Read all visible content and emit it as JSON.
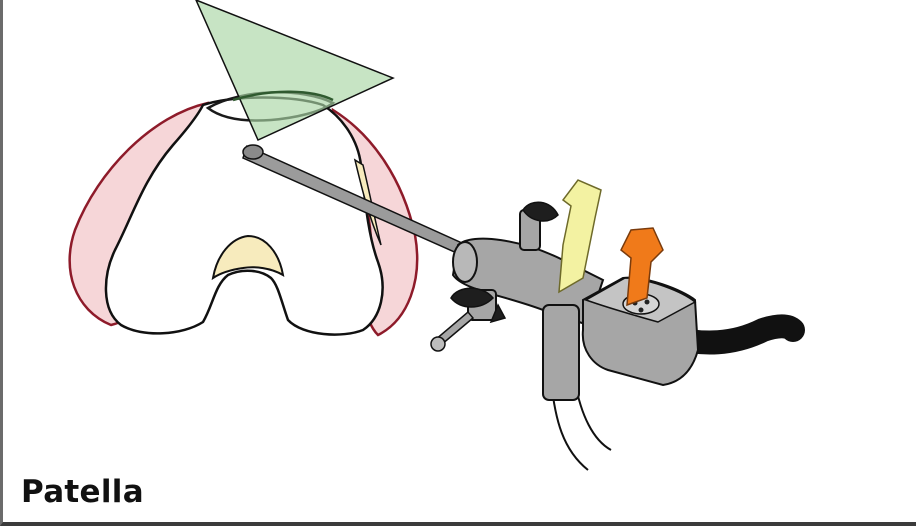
{
  "caption": "Patella",
  "colors": {
    "capsule": "#f6d6d8",
    "capsule_outline": "#8e1b2a",
    "bone": "#ffffff",
    "cartilage": "#f7ebbd",
    "field_of_view": "#a9d6a5",
    "scope_body": "#a6a6a6",
    "light_cable": "#111111",
    "yellow_arrow": "#f3f2a2",
    "orange_arrow": "#f07a1a"
  },
  "icons": {
    "yellow_arrow": "rotation-arrow-icon",
    "orange_arrow": "rotation-arrow-icon"
  }
}
